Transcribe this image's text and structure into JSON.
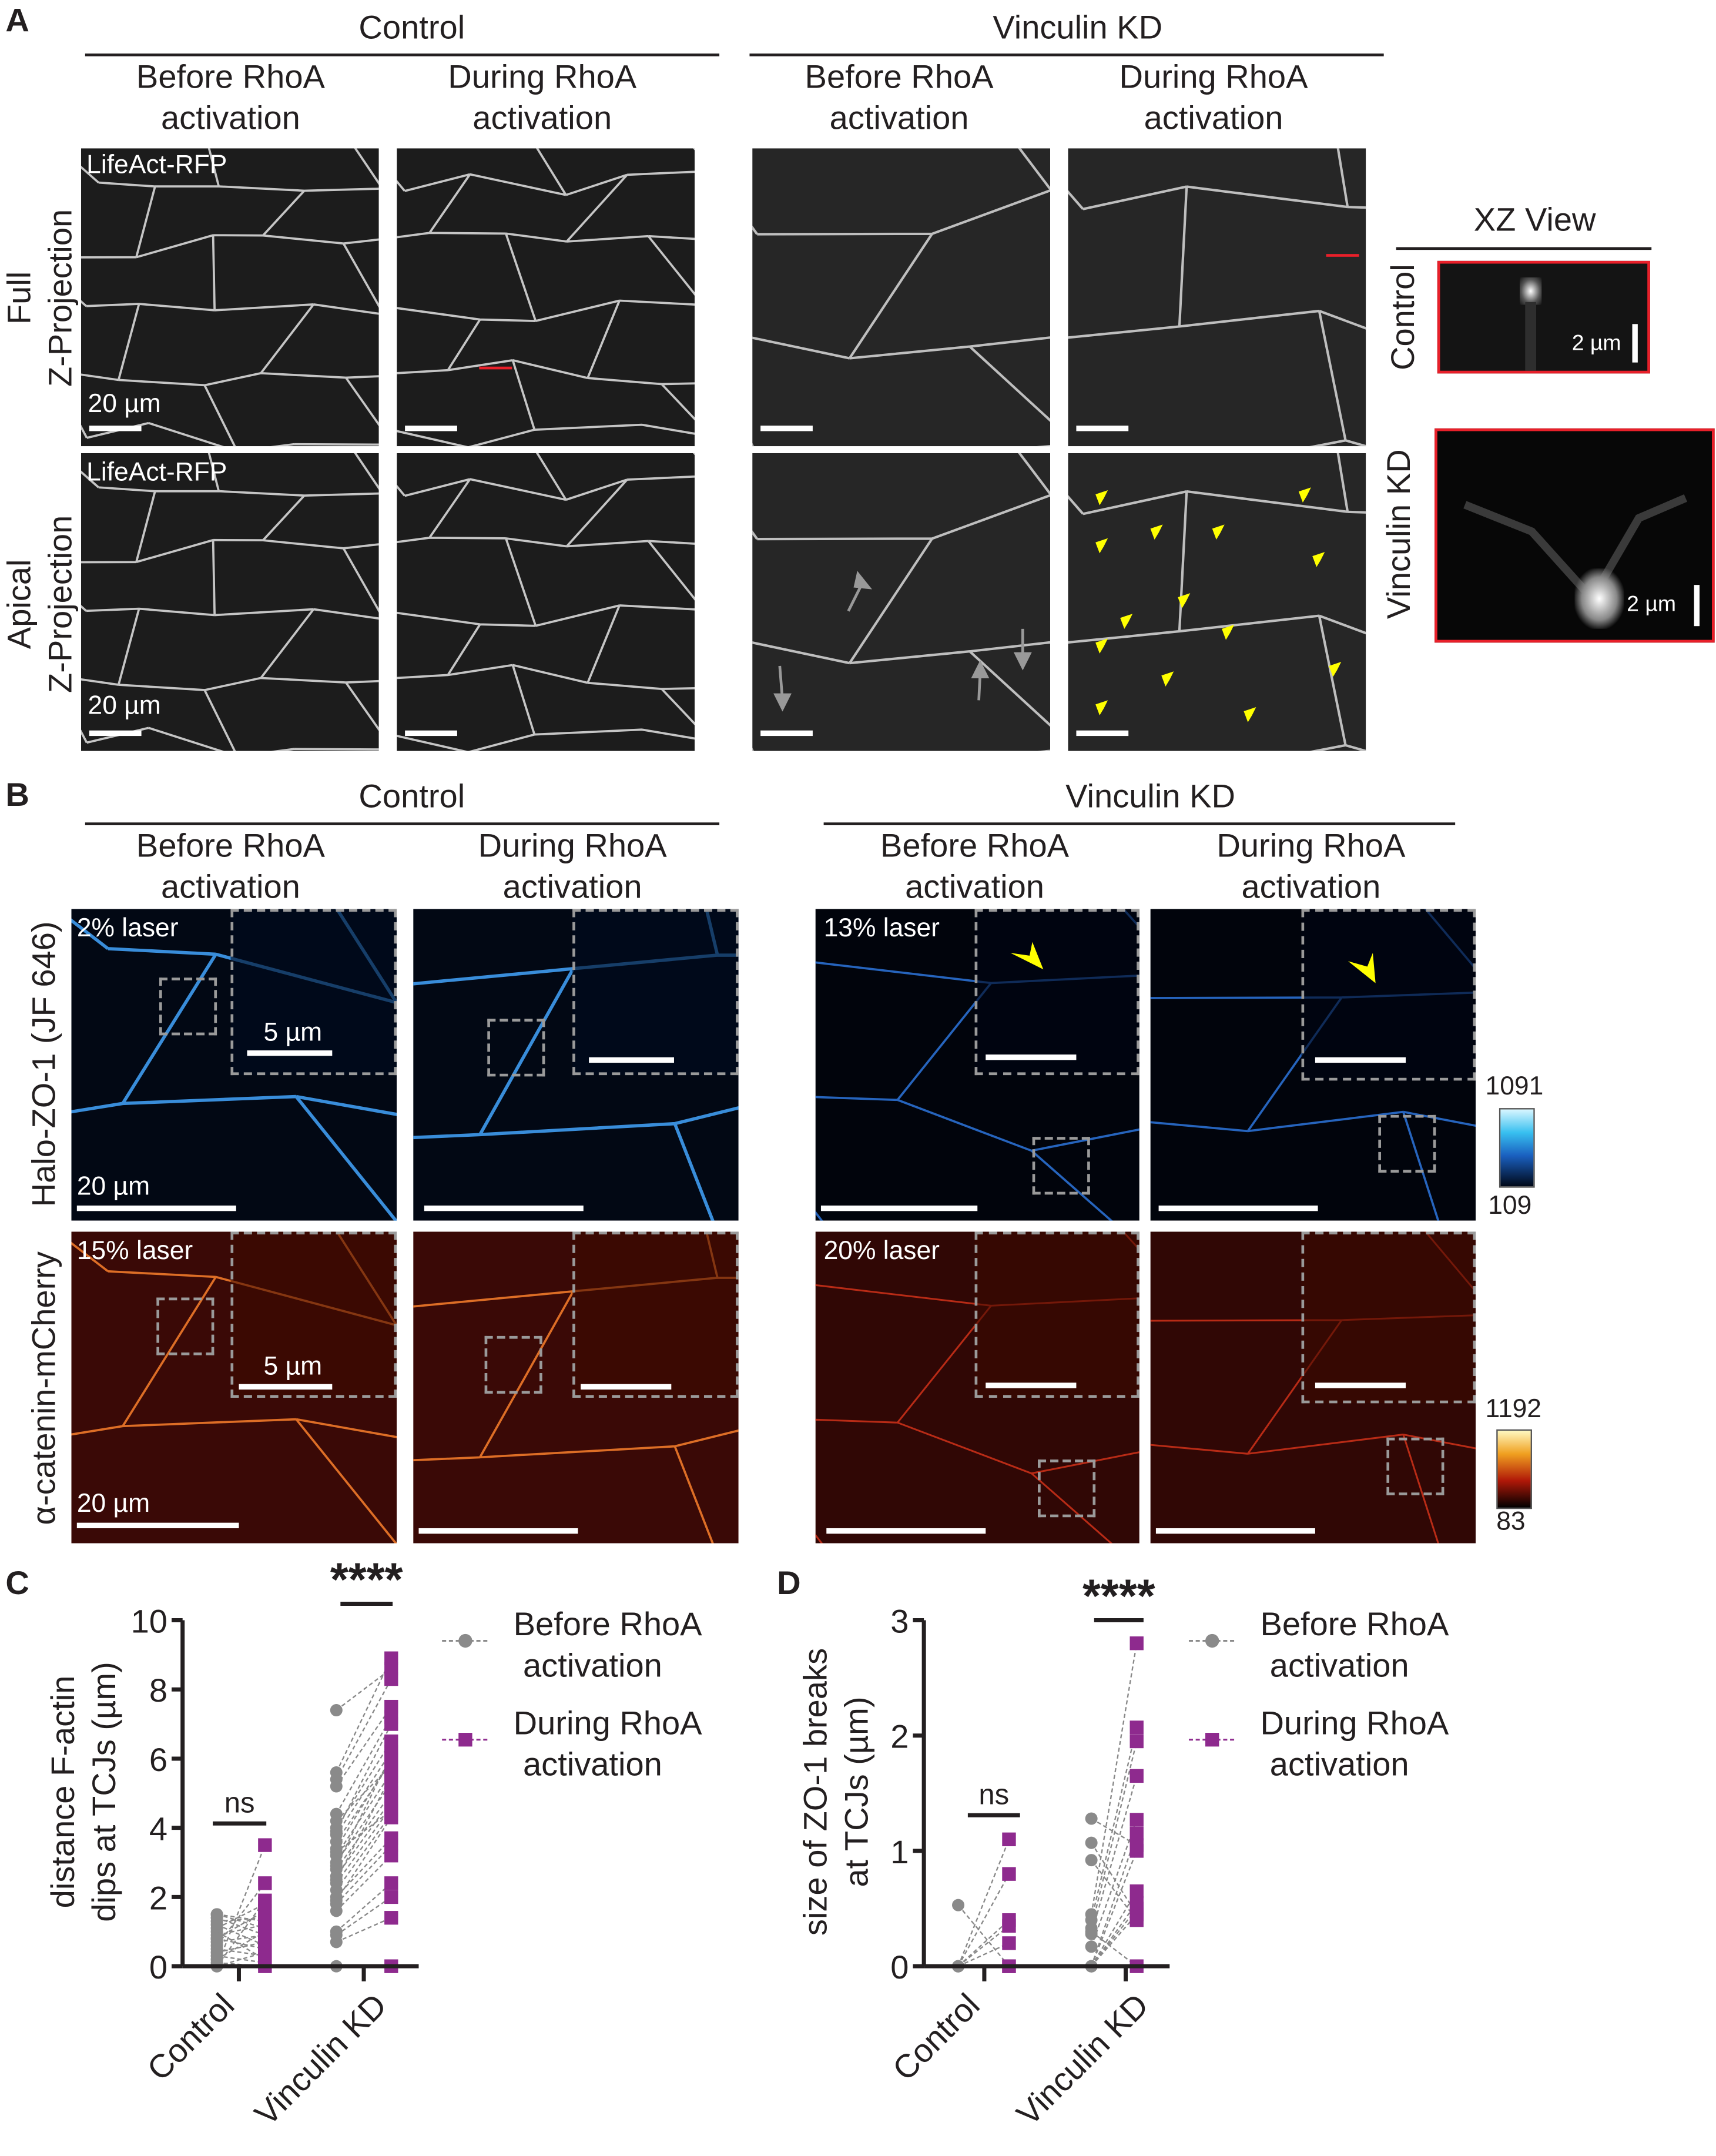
{
  "panel_a": {
    "label": "A",
    "groups": [
      {
        "title": "Control"
      },
      {
        "title": "Vinculin KD"
      }
    ],
    "columns": [
      {
        "line1": "Before RhoA",
        "line2": "activation"
      },
      {
        "line1": "During RhoA",
        "line2": "activation"
      },
      {
        "line1": "Before RhoA",
        "line2": "activation"
      },
      {
        "line1": "During RhoA",
        "line2": "activation"
      }
    ],
    "rows": [
      {
        "line1": "Full",
        "line2": "Z-Projection"
      },
      {
        "line1": "Apical",
        "line2": "Z-Projection"
      }
    ],
    "channel_label": "LifeAct-RFP",
    "scale_label": "20 µm",
    "xz": {
      "title": "XZ View",
      "rows": [
        "Control",
        "Vinculin KD"
      ],
      "scale_label": "2 µm"
    }
  },
  "panel_b": {
    "label": "B",
    "groups": [
      {
        "title": "Control"
      },
      {
        "title": "Vinculin KD"
      }
    ],
    "columns": [
      {
        "line1": "Before RhoA",
        "line2": "activation"
      },
      {
        "line1": "During RhoA",
        "line2": "activation"
      },
      {
        "line1": "Before RhoA",
        "line2": "activation"
      },
      {
        "line1": "During RhoA",
        "line2": "activation"
      }
    ],
    "rows": [
      "Halo-ZO-1 (JF 646)",
      "α-catenin-mCherry"
    ],
    "laser": {
      "control_zo1": "2% laser",
      "control_cat": "15% laser",
      "vkd_zo1": "13% laser",
      "vkd_cat": "20% laser"
    },
    "inset_scale_label": "5 µm",
    "scale_label": "20 µm",
    "colorbars": [
      {
        "max": "1091",
        "min": "109",
        "colormap": "cyan-hot"
      },
      {
        "max": "1192",
        "min": "83",
        "colormap": "red-hot"
      }
    ]
  },
  "colors": {
    "before": "#8a8a8a",
    "during": "#8e2a8e",
    "xz_border": "#e8202a",
    "arrowhead": "#ffff00"
  },
  "chart_data": [
    {
      "panel_label": "C",
      "type": "scatter",
      "ylabel_line1": "distance F-actin",
      "ylabel_line2": "dips at TCJs (µm)",
      "categories": [
        "Control",
        "Vinculin KD"
      ],
      "ylim": [
        0,
        10
      ],
      "yticks": [
        "0",
        "2",
        "4",
        "6",
        "8",
        "10"
      ],
      "legend": [
        {
          "line1": "Before RhoA",
          "line2": "activation"
        },
        {
          "line1": "During RhoA",
          "line2": "activation"
        }
      ],
      "legend_position": "right",
      "significance": [
        "ns",
        "****"
      ],
      "series": [
        {
          "name": "Before RhoA activation",
          "marker": "circle"
        },
        {
          "name": "During RhoA activation",
          "marker": "square"
        }
      ],
      "pairs": {
        "Control": [
          [
            1.5,
            1.3
          ],
          [
            1.4,
            0.9
          ],
          [
            1.3,
            1.4
          ],
          [
            1.2,
            0.6
          ],
          [
            1.1,
            1.8
          ],
          [
            1.0,
            0.2
          ],
          [
            0.9,
            1.2
          ],
          [
            0.8,
            0.5
          ],
          [
            0.7,
            0.9
          ],
          [
            0.6,
            2.4
          ],
          [
            0.5,
            0.3
          ],
          [
            0.4,
            0.7
          ],
          [
            0.3,
            0.1
          ],
          [
            0.2,
            1.0
          ],
          [
            0.1,
            0
          ],
          [
            0,
            3.5
          ],
          [
            0,
            1.9
          ],
          [
            0,
            0.4
          ],
          [
            1.5,
            1.1
          ],
          [
            0.8,
            1.6
          ]
        ],
        "Vinculin KD": [
          [
            7.4,
            8.6
          ],
          [
            5.6,
            8.9
          ],
          [
            5.4,
            8.3
          ],
          [
            5.2,
            7.5
          ],
          [
            4.4,
            7.2
          ],
          [
            4.0,
            6.5
          ],
          [
            3.8,
            6.2
          ],
          [
            3.6,
            5.9
          ],
          [
            3.4,
            6.0
          ],
          [
            3.2,
            5.6
          ],
          [
            3.0,
            5.3
          ],
          [
            2.8,
            5.0
          ],
          [
            2.6,
            4.8
          ],
          [
            2.4,
            4.6
          ],
          [
            2.2,
            4.4
          ],
          [
            2.0,
            3.7
          ],
          [
            1.8,
            3.5
          ],
          [
            1.6,
            3.2
          ],
          [
            1.0,
            2.4
          ],
          [
            0.9,
            2.0
          ],
          [
            0.7,
            1.4
          ],
          [
            0,
            0
          ],
          [
            4.2,
            5.8
          ],
          [
            3.3,
            4.5
          ],
          [
            2.5,
            5.5
          ],
          [
            1.9,
            4.3
          ],
          [
            3.9,
            7.0
          ],
          [
            2.9,
            6.1
          ]
        ]
      }
    },
    {
      "panel_label": "D",
      "type": "scatter",
      "ylabel_line1": "size of ZO-1 breaks",
      "ylabel_line2": "at TCJs (µm)",
      "categories": [
        "Control",
        "Vinculin KD"
      ],
      "ylim": [
        0,
        3
      ],
      "yticks": [
        "0",
        "1",
        "2",
        "3"
      ],
      "legend": [
        {
          "line1": "Before RhoA",
          "line2": "activation"
        },
        {
          "line1": "During RhoA",
          "line2": "activation"
        }
      ],
      "legend_position": "right",
      "significance": [
        "ns",
        "****"
      ],
      "series": [
        {
          "name": "Before RhoA activation",
          "marker": "circle"
        },
        {
          "name": "During RhoA activation",
          "marker": "square"
        }
      ],
      "pairs": {
        "Control": [
          [
            0.53,
            0
          ],
          [
            0,
            1.1
          ],
          [
            0,
            0.8
          ],
          [
            0,
            0.4
          ],
          [
            0,
            0.35
          ],
          [
            0,
            0.2
          ],
          [
            0,
            0
          ]
        ],
        "Vinculin KD": [
          [
            1.28,
            1.05
          ],
          [
            1.07,
            0.45
          ],
          [
            0.92,
            0.4
          ],
          [
            0.45,
            2.8
          ],
          [
            0.4,
            2.07
          ],
          [
            0.33,
            1.95
          ],
          [
            0.28,
            1.65
          ],
          [
            0.17,
            1.27
          ],
          [
            0,
            1.15
          ],
          [
            0,
            1.0
          ],
          [
            0,
            0.65
          ],
          [
            0,
            0.55
          ],
          [
            0.3,
            0
          ],
          [
            0,
            0.5
          ],
          [
            0,
            0.45
          ]
        ]
      }
    }
  ]
}
